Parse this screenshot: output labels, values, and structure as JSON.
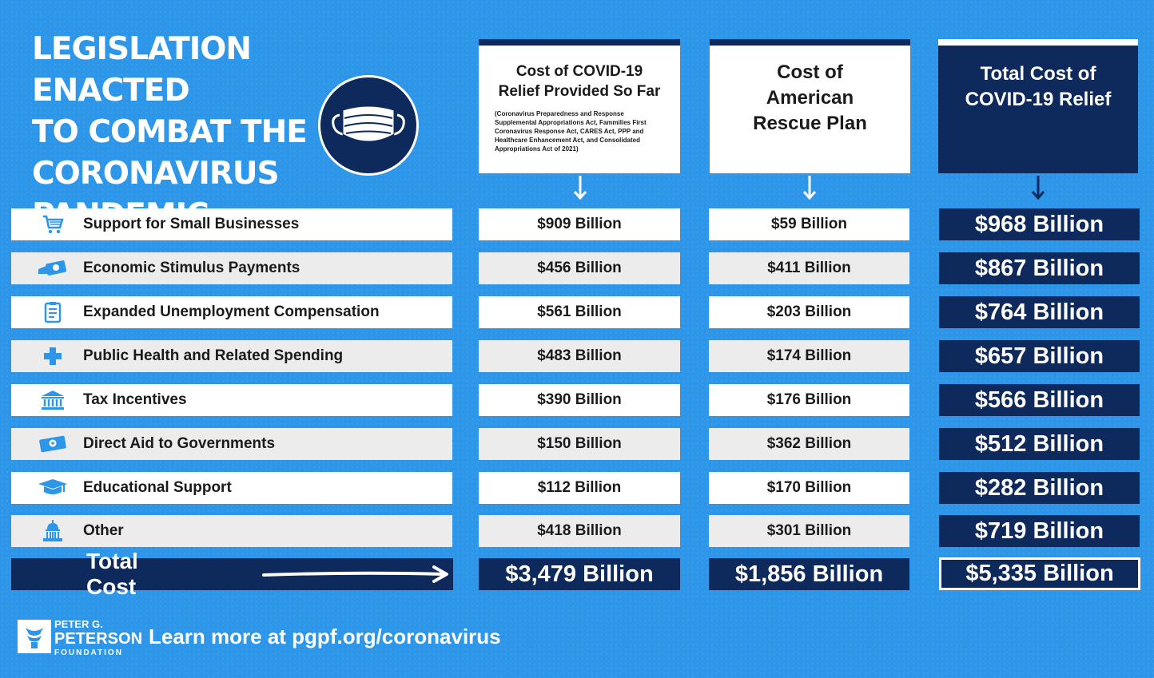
{
  "title_lines": [
    "LEGISLATION ENACTED",
    "TO COMBAT THE",
    "CORONAVIRUS",
    "PANDEMIC"
  ],
  "columns": {
    "relief_so_far": {
      "header_lines": [
        "Cost of COVID-19",
        "Relief Provided So Far"
      ],
      "note": "(Coronavirus Preparedness and Response Supplemental Appropriations Act, Fammilies First Coronavirus Response Act, CARES Act, PPP and Healthcare Enhancement Act, and Consolidated Appropriations Act of 2021)"
    },
    "rescue_plan": {
      "header_lines": [
        "Cost of",
        "American",
        "Rescue Plan"
      ]
    },
    "total": {
      "header_lines": [
        "Total Cost of",
        "COVID-19 Relief"
      ]
    }
  },
  "icons": [
    "cart-icon",
    "money-hand-icon",
    "clipboard-icon",
    "cross-icon",
    "bank-icon",
    "cash-icon",
    "graduation-cap-icon",
    "capitol-icon"
  ],
  "chart_data": {
    "type": "table",
    "columns": [
      "Cost of COVID-19 Relief Provided So Far",
      "Cost of American Rescue Plan",
      "Total Cost of COVID-19 Relief"
    ],
    "rows": [
      {
        "category": "Support for Small Businesses",
        "values": [
          "$909 Billion",
          "$59 Billion",
          "$968 Billion"
        ]
      },
      {
        "category": "Economic Stimulus Payments",
        "values": [
          "$456 Billion",
          "$411 Billion",
          "$867 Billion"
        ]
      },
      {
        "category": "Expanded Unemployment Compensation",
        "values": [
          "$561 Billion",
          "$203 Billion",
          "$764 Billion"
        ]
      },
      {
        "category": "Public Health and Related Spending",
        "values": [
          "$483 Billion",
          "$174 Billion",
          "$657 Billion"
        ]
      },
      {
        "category": "Tax Incentives",
        "values": [
          "$390 Billion",
          "$176 Billion",
          "$566 Billion"
        ]
      },
      {
        "category": "Direct Aid to Governments",
        "values": [
          "$150 Billion",
          "$362 Billion",
          "$512 Billion"
        ]
      },
      {
        "category": "Educational Support",
        "values": [
          "$112 Billion",
          "$170 Billion",
          "$282 Billion"
        ]
      },
      {
        "category": "Other",
        "values": [
          "$418 Billion",
          "$301 Billion",
          "$719 Billion"
        ]
      }
    ],
    "total": {
      "label": "Total Cost",
      "values": [
        "$3,479 Billion",
        "$1,856 Billion",
        "$5,335 Billion"
      ]
    }
  },
  "footer": {
    "logo_lines": [
      "PETER G.",
      "PETERSON",
      "FOUNDATION"
    ],
    "learn_more": "Learn more at pgpf.org/coronavirus"
  },
  "colors": {
    "background": "#2e96e8",
    "navy": "#0e2a5c",
    "icon_blue": "#2e96e8"
  }
}
